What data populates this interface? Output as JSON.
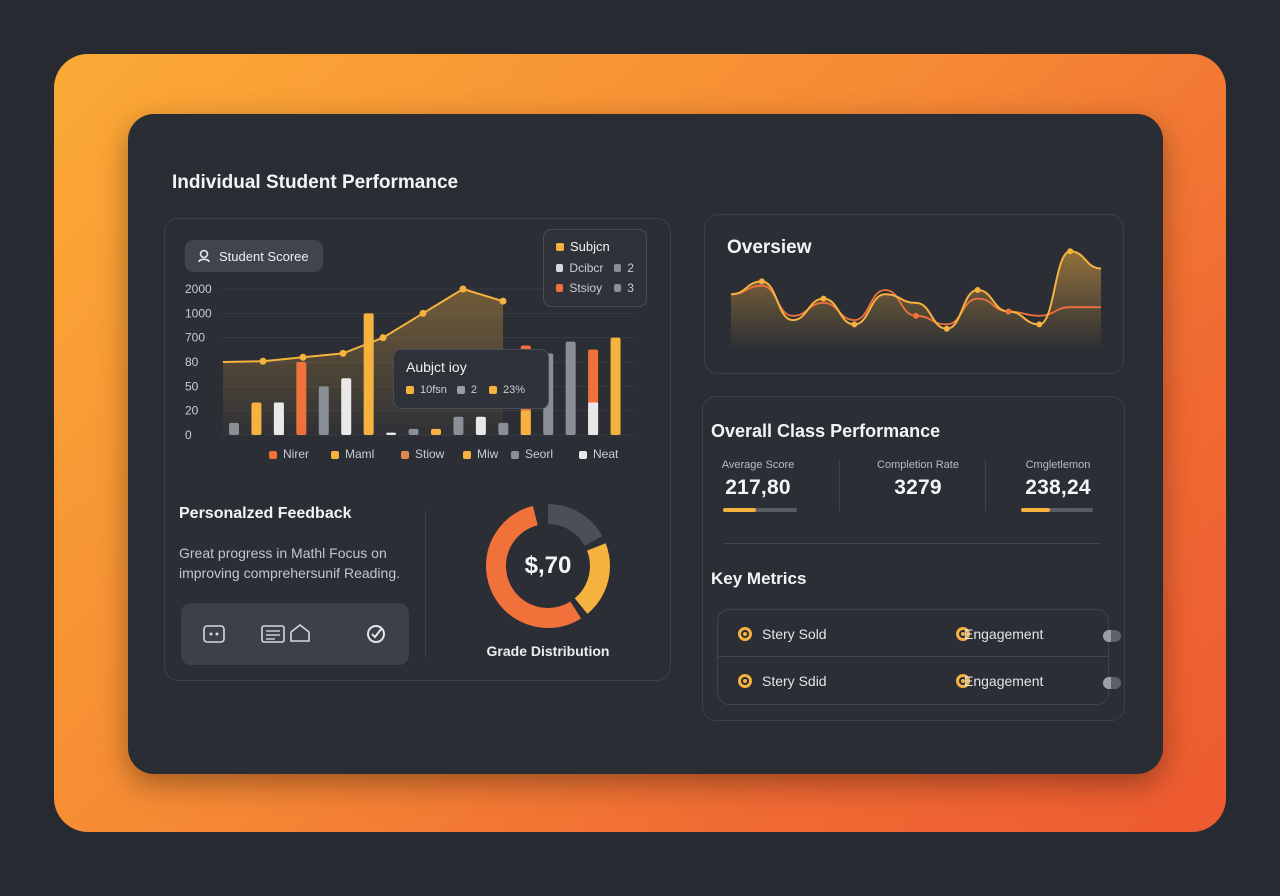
{
  "header": {
    "title": "Individual Student Performance"
  },
  "student_chart": {
    "badge_label": "Student Scoree",
    "y_ticks": [
      "2000",
      "1000",
      "700",
      "80",
      "50",
      "20",
      "0"
    ],
    "legend_top": {
      "title": "Subjcn",
      "rows": [
        {
          "label": "Dcibcr",
          "value": "2",
          "color": "#d6d8dd"
        },
        {
          "label": "Stsioy",
          "value": "3",
          "color": "#f0713a"
        }
      ],
      "title_color": "#f6b23f"
    },
    "tooltip": {
      "title": "Aubjct ioy",
      "items": [
        "10fsn",
        "2",
        "23%"
      ],
      "colors": [
        "#f6b23f",
        "#9a9ea7",
        "#f6b23f"
      ]
    },
    "x_legend": [
      {
        "label": "Nirer",
        "color": "#f0713a"
      },
      {
        "label": "Maml",
        "color": "#f6b23f"
      },
      {
        "label": "Stiow",
        "color": "#e0894a"
      },
      {
        "label": "Miw",
        "color": "#f6b23f"
      },
      {
        "label": "Seorl",
        "color": "#8a8e97"
      },
      {
        "label": "Neat",
        "color": "#e9e9ea"
      }
    ]
  },
  "chart_data": {
    "type": "bar",
    "title": "",
    "ylim": [
      0,
      2000
    ],
    "bars": [
      {
        "value": 10,
        "color": "#8a8e97"
      },
      {
        "value": 30,
        "color": "#f6b23f"
      },
      {
        "value": 20,
        "stack_top": 30,
        "color": "#f0713a",
        "base_color": "#e9e9ea"
      },
      {
        "value": 80,
        "color": "#f0713a"
      },
      {
        "value": 50,
        "color": "#8a8e97"
      },
      {
        "value": 60,
        "color": "#e9e9ea"
      },
      {
        "value": 1000,
        "color": "#f6b23f"
      },
      {
        "value": 2,
        "color": "#e9e9ea"
      },
      {
        "value": 5,
        "color": "#8a8e97"
      },
      {
        "value": 5,
        "color": "#f6b23f"
      },
      {
        "value": 15,
        "color": "#8a8e97"
      },
      {
        "value": 15,
        "color": "#e9e9ea"
      },
      {
        "value": 10,
        "color": "#8a8e97"
      },
      {
        "value": 500,
        "color": "#f0713a",
        "stack_base": 20,
        "base_color": "#f6b23f"
      },
      {
        "value": 300,
        "color": "#8a8e97"
      },
      {
        "value": 600,
        "color": "#8a8e97"
      },
      {
        "value": 400,
        "color": "#f0713a",
        "stack_base": 30,
        "base_color": "#e9e9ea"
      },
      {
        "value": 700,
        "color": "#f6b23f"
      }
    ],
    "line": [
      {
        "x": 0,
        "y": 80
      },
      {
        "x": 1,
        "y": 100
      },
      {
        "x": 2,
        "y": 200
      },
      {
        "x": 3,
        "y": 300
      },
      {
        "x": 4,
        "y": 700
      },
      {
        "x": 5,
        "y": 1000
      },
      {
        "x": 6,
        "y": 2000
      },
      {
        "x": 7,
        "y": 1500
      }
    ]
  },
  "feedback": {
    "title": "Personalzed Feedback",
    "text": "Great progress in Mathl Focus on improving comprehersunif Reading."
  },
  "grade": {
    "center_value": "$,70",
    "label": "Grade Distribution",
    "segments": [
      {
        "fraction": 0.55,
        "color": "#f0713a"
      },
      {
        "fraction": 0.22,
        "color": "#f6b23f"
      },
      {
        "fraction": 0.05,
        "color": "#2b2e35"
      },
      {
        "fraction": 0.18,
        "color": "#4c4f57"
      }
    ]
  },
  "overview": {
    "title": "Oversiew",
    "series": [
      {
        "name": "",
        "color": "#f6b23f",
        "values": [
          0.45,
          0.6,
          0.15,
          0.4,
          0.1,
          0.45,
          0.35,
          0.05,
          0.5,
          0.25,
          0.1,
          0.95,
          0.75
        ]
      },
      {
        "name": "",
        "color": "#f0713a",
        "values": [
          0.45,
          0.55,
          0.2,
          0.35,
          0.15,
          0.5,
          0.2,
          0.1,
          0.4,
          0.25,
          0.2,
          0.3,
          0.3
        ]
      }
    ]
  },
  "class_perf": {
    "title": "Overall Class Performance",
    "metrics": [
      {
        "label": "Average Score",
        "value": "217,80",
        "progress": 0.45
      },
      {
        "label": "Completion Rate",
        "value": "3279",
        "progress": null
      },
      {
        "label": "Cmgletlemon",
        "value": "238,24",
        "progress": 0.4
      }
    ],
    "accent": "#f6b23f"
  },
  "key_metrics": {
    "title": "Key Metrics",
    "rows": [
      {
        "left": "Stery Sold",
        "right": "Engagement"
      },
      {
        "left": "Stery Sdid",
        "right": "Engagement"
      }
    ]
  }
}
